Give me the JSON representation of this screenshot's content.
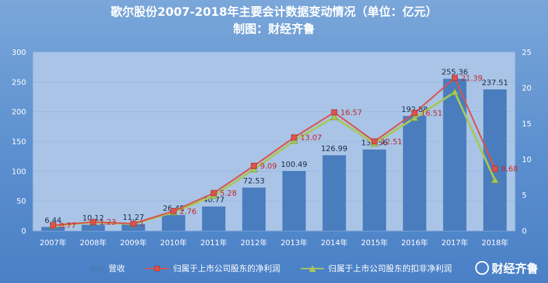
{
  "title_line1": "歌尔股份2007-2018年主要会计数据变动情况（单位：亿元）",
  "title_line2": "制图：财经齐鲁",
  "watermark": "财经齐鲁",
  "colors": {
    "bar": "#4a7dbe",
    "net_profit": "#d9534f",
    "deducted_profit": "#a6c85a",
    "label_net": "#c0282d",
    "plot_bg": "#a9c4e6"
  },
  "chart_data": {
    "type": "bar+line",
    "title": "歌尔股份2007-2018年主要会计数据变动情况（单位：亿元）",
    "subtitle": "制图：财经齐鲁",
    "categories": [
      "2007年",
      "2008年",
      "2009年",
      "2010年",
      "2011年",
      "2012年",
      "2013年",
      "2014年",
      "2015年",
      "2016年",
      "2017年",
      "2018年"
    ],
    "y_left": {
      "min": 0,
      "max": 300,
      "ticks": [
        0,
        50,
        100,
        150,
        200,
        250,
        300
      ]
    },
    "y_right": {
      "min": 0,
      "max": 25,
      "ticks": [
        0,
        5,
        10,
        15,
        20,
        25
      ]
    },
    "series": [
      {
        "name": "营收",
        "kind": "bar",
        "axis": "left",
        "values": [
          6.44,
          10.12,
          11.27,
          26.45,
          40.77,
          72.53,
          100.49,
          126.99,
          136.56,
          192.88,
          255.36,
          237.51
        ],
        "labels": [
          "6.44",
          "10.12",
          "11.27",
          "26.45",
          "40.77",
          "72.53",
          "100.49",
          "126.99",
          "136.56",
          "192.88",
          "255.36",
          "237.51"
        ]
      },
      {
        "name": "归属于上市公司股东的净利润",
        "kind": "line",
        "axis": "right",
        "marker": "square",
        "values": [
          0.77,
          1.23,
          1.0,
          2.76,
          5.28,
          9.09,
          13.07,
          16.57,
          12.51,
          16.51,
          21.39,
          8.68
        ],
        "labels": [
          "0.77",
          "1.23",
          "1",
          "2.76",
          "5.28",
          "9.09",
          "13.07",
          "16.57",
          "12.51",
          "16.51",
          "21.39",
          "8.68"
        ]
      },
      {
        "name": "归属于上市公司股东的扣非净利润",
        "kind": "line",
        "axis": "right",
        "marker": "triangle",
        "values": [
          0.7,
          1.2,
          0.95,
          2.6,
          4.9,
          8.6,
          12.6,
          15.9,
          12.2,
          15.8,
          19.4,
          7.1
        ]
      }
    ],
    "legend_position": "bottom"
  }
}
